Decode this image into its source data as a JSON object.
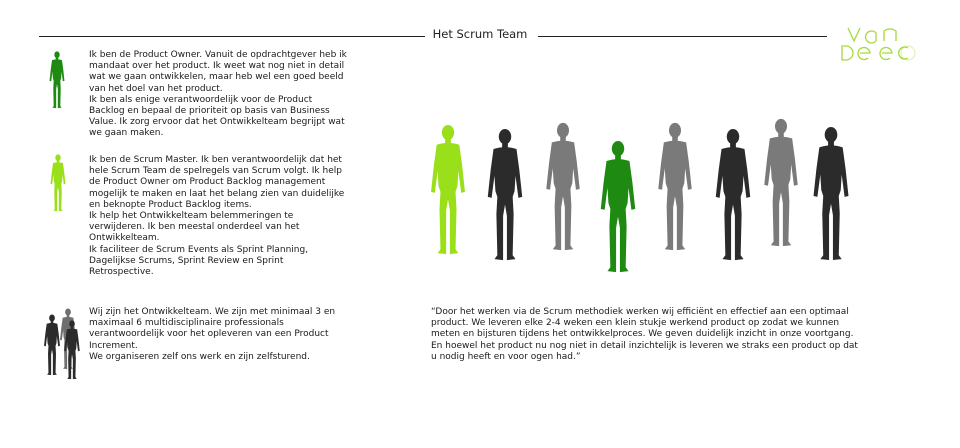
{
  "header": {
    "title": "Het Scrum Team"
  },
  "logo": {
    "line1": "van",
    "line2": "de eco"
  },
  "colors": {
    "product_owner": "#1f8a12",
    "scrum_master": "#99e01a",
    "dev_dark": "#2b2b2b",
    "dev_grey": "#6f6f6f",
    "rule": "#222222"
  },
  "roles": [
    {
      "name": "Product Owner",
      "icon": "person-icon",
      "paragraphs": [
        "Ik ben de Product Owner. Vanuit de opdrachtgever heb ik mandaat over het product. Ik weet wat nog niet in detail wat we gaan ontwikkelen, maar heb wel een goed beeld van het doel van het product.",
        "Ik ben als enige verantwoordelijk voor de Product Backlog en bepaal de prioriteit op basis van Business Value. Ik zorg ervoor dat het Ontwikkelteam begrijpt wat we gaan maken."
      ]
    },
    {
      "name": "Scrum Master",
      "icon": "person-icon",
      "paragraphs": [
        "Ik ben de Scrum Master. Ik ben verantwoordelijk dat het hele Scrum Team de spelregels van Scrum volgt. Ik help de Product Owner om Product Backlog management mogelijk te maken en laat het belang zien van duidelijke en beknopte Product Backlog items.",
        "Ik help het Ontwikkelteam belemmeringen te verwijderen. Ik ben meestal onderdeel van het Ontwikkelteam.",
        "Ik faciliteer de Scrum Events als Sprint Planning, Dagelijkse Scrums, Sprint Review en Sprint Retrospective."
      ]
    },
    {
      "name": "Ontwikkelteam",
      "icon": "group-icon",
      "paragraphs": [
        "Wij zijn het Ontwikkelteam. We zijn met minimaal 3 en maximaal 6 multidisciplinaire professionals verantwoordelijk voor het opleveren van een Product Increment.",
        "We organiseren zelf ons werk en zijn zelfsturend."
      ]
    }
  ],
  "quote": "“Door het werken via de Scrum methodiek werken wij efficiënt en effectief aan een optimaal product. We leveren elke 2-4 weken een klein stukje werkend product op zodat we kunnen meten en bijsturen tijdens het ontwikkelproces. We geven duidelijk inzicht in onze voortgang. En hoewel het product nu nog niet in detail inzichtelijk is leveren we straks een product op dat u nodig heeft en voor ogen had.”"
}
